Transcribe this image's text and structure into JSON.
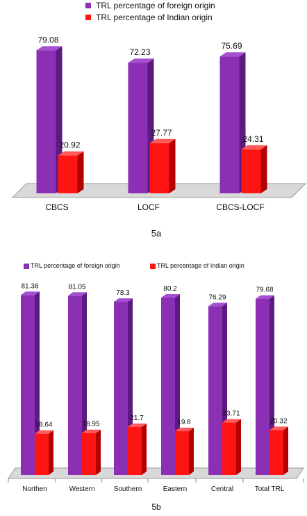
{
  "colors": {
    "foreign": "#8b2fb5",
    "foreign_side": "#5d1a80",
    "foreign_top": "#a64fd1",
    "indian": "#ff1414",
    "indian_side": "#b30000",
    "indian_top": "#ff5a5a",
    "floor": "#d9d9d9",
    "floor_edge": "#9a9a9a"
  },
  "chart_data": [
    {
      "type": "bar",
      "caption": "5a",
      "categories": [
        "CBCS",
        "LOCF",
        "CBCS-LOCF"
      ],
      "series": [
        {
          "name": "TRL percentage of foreign origin",
          "values": [
            79.08,
            72.23,
            75.69
          ]
        },
        {
          "name": "TRL percentage of Indian origin",
          "values": [
            20.92,
            27.77,
            24.31
          ]
        }
      ],
      "ylim": [
        0,
        100
      ],
      "legend": "top"
    },
    {
      "type": "bar",
      "caption": "5b",
      "categories": [
        "Northen",
        "Western",
        "Southern",
        "Eastern",
        "Central",
        "Total TRL"
      ],
      "series": [
        {
          "name": "TRL percentage of foreign origin",
          "values": [
            81.36,
            81.05,
            78.3,
            80.2,
            76.29,
            79.68
          ]
        },
        {
          "name": "TRL percentage of Indian origin",
          "values": [
            18.64,
            18.95,
            21.7,
            19.8,
            23.71,
            20.32
          ]
        }
      ],
      "ylim": [
        0,
        100
      ],
      "legend": "top"
    }
  ]
}
